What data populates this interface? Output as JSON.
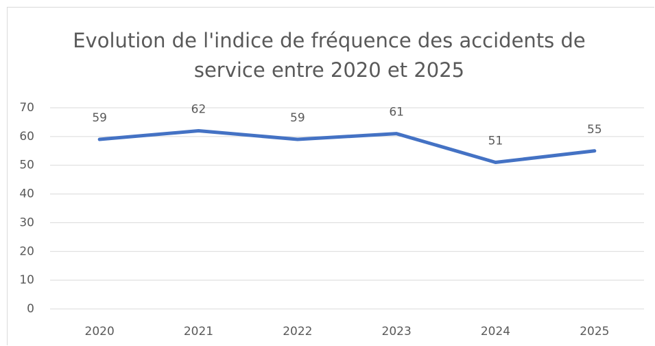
{
  "chart_data": {
    "type": "line",
    "title": "Evolution de l'indice de fréquence des accidents de service entre 2020 et 2025",
    "categories": [
      "2020",
      "2021",
      "2022",
      "2023",
      "2024",
      "2025"
    ],
    "values": [
      59,
      62,
      59,
      61,
      51,
      55
    ],
    "color": "#4472c4",
    "ylim": [
      0,
      70
    ],
    "yticks": [
      0,
      10,
      20,
      30,
      40,
      50,
      60,
      70
    ],
    "grid": true
  }
}
